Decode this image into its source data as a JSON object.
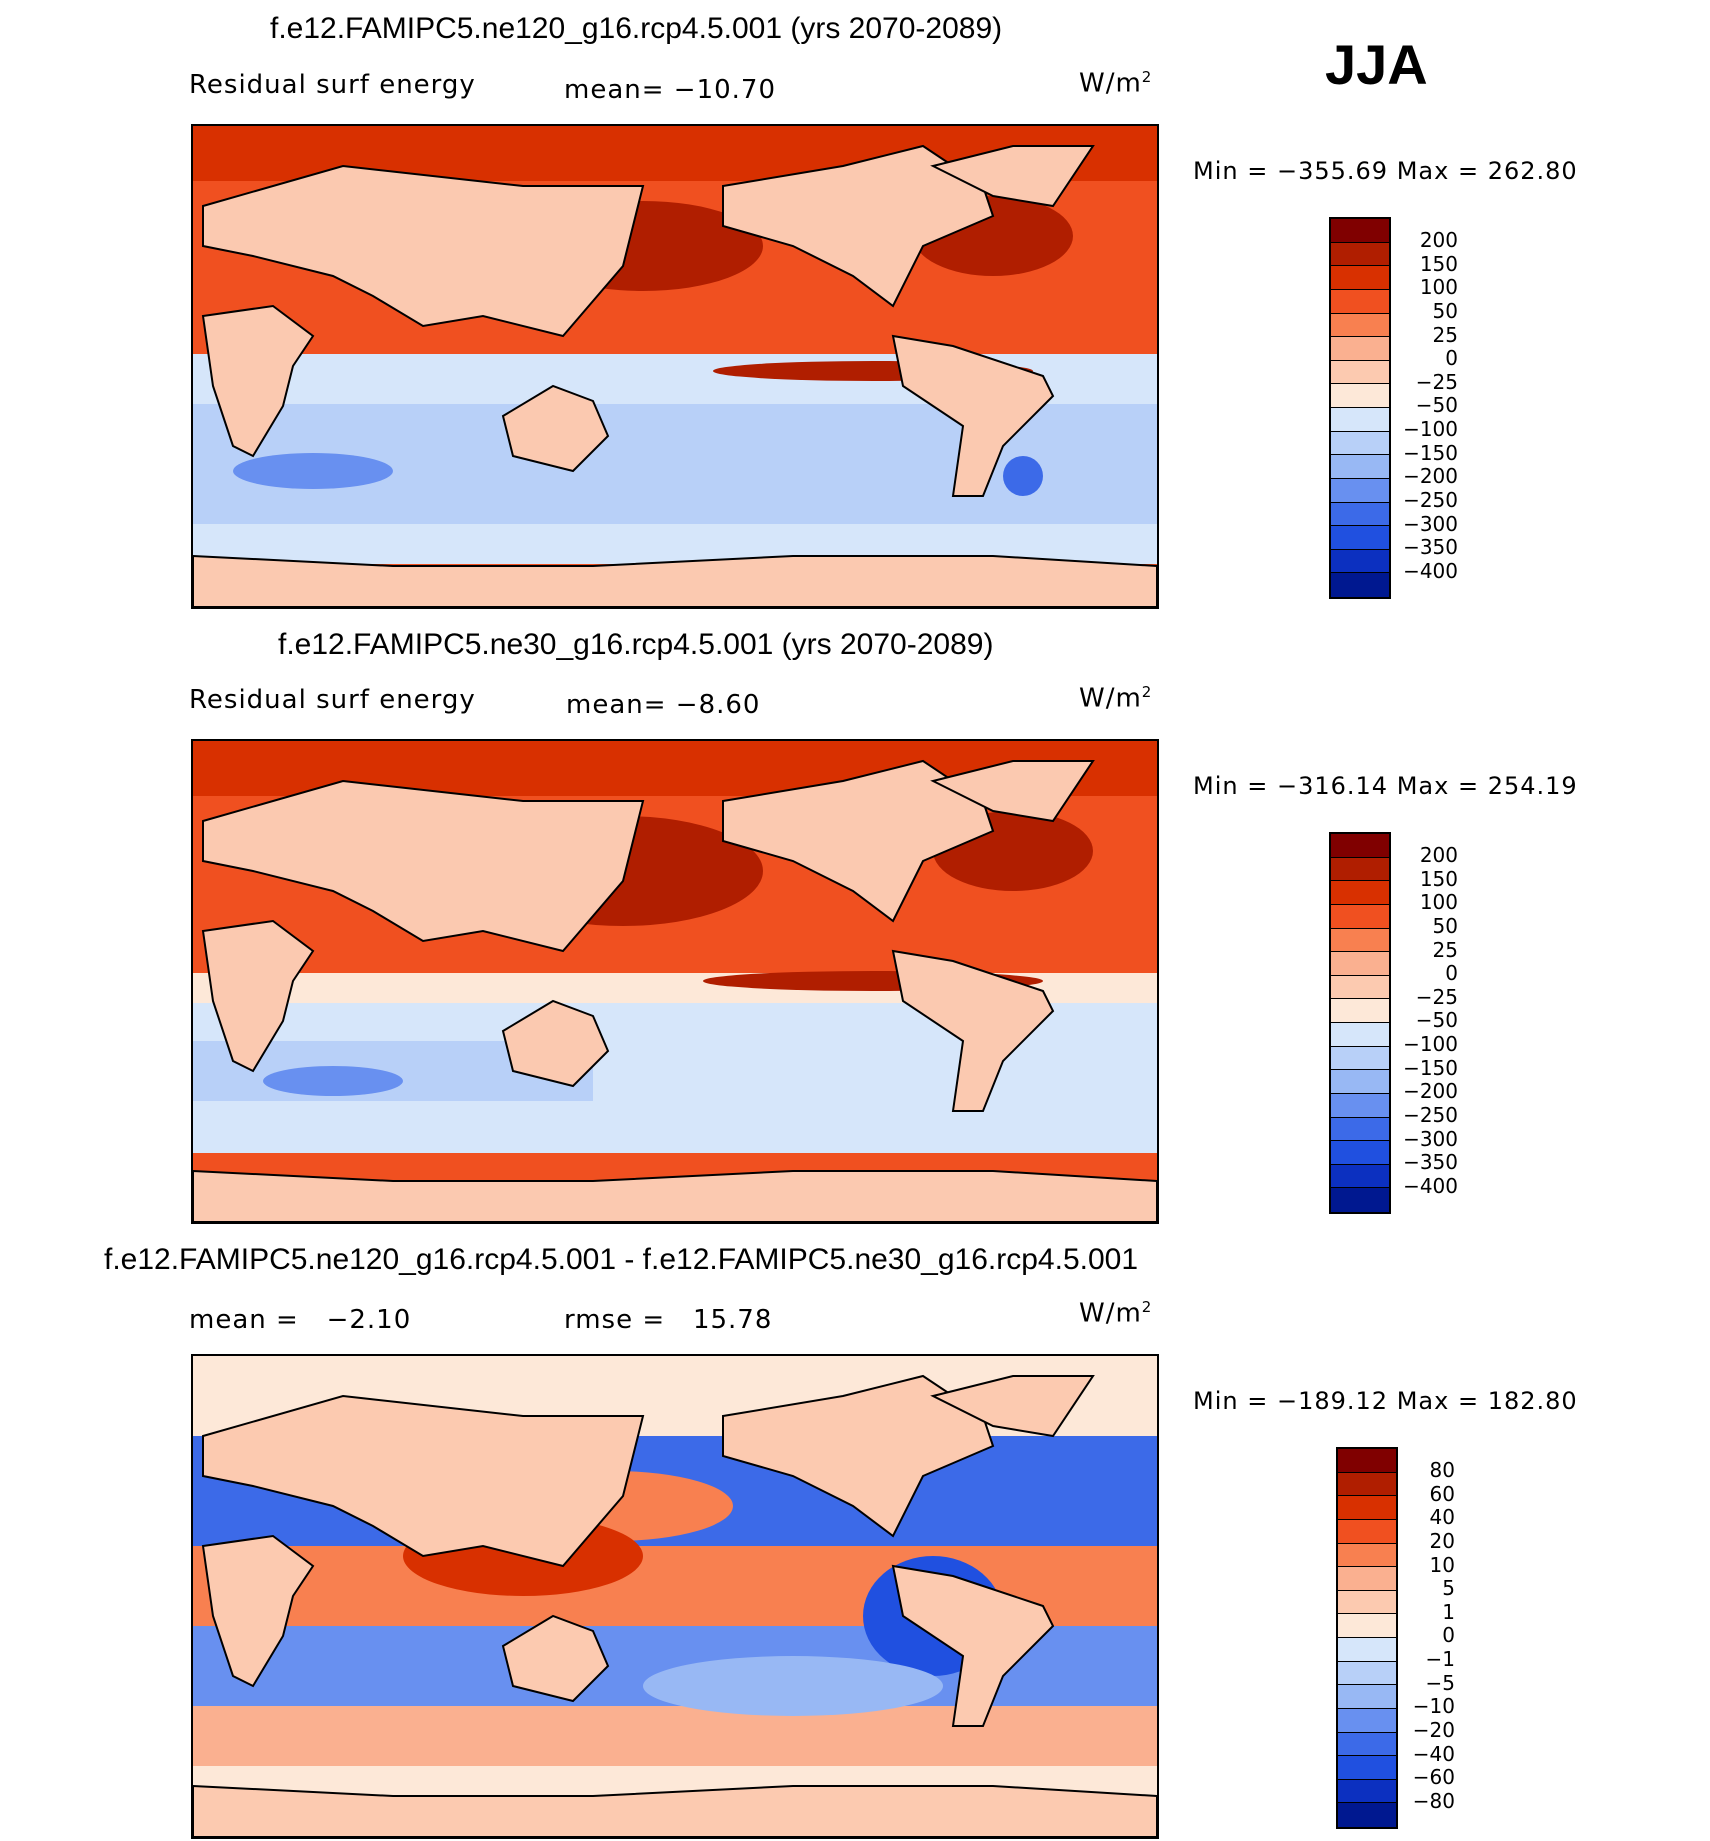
{
  "season": "JJA",
  "panels": [
    {
      "title": "f.e12.FAMIPC5.ne120_g16.rcp4.5.001 (yrs 2070-2089)",
      "left_label": "Residual surf energy",
      "stat_label": "mean=",
      "stat_value": "−10.70",
      "units": "W/m",
      "units_sup": "2",
      "min_label": "Min",
      "min_value": "−355.69",
      "max_label": "Max",
      "max_value": "262.80",
      "colorbar_labels": [
        "200",
        "150",
        "100",
        "50",
        "25",
        "0",
        "−25",
        "−50",
        "−100",
        "−150",
        "−200",
        "−250",
        "−300",
        "−350",
        "−400"
      ]
    },
    {
      "title": "f.e12.FAMIPC5.ne30_g16.rcp4.5.001 (yrs 2070-2089)",
      "left_label": "Residual surf energy",
      "stat_label": "mean=",
      "stat_value": "−8.60",
      "units": "W/m",
      "units_sup": "2",
      "min_label": "Min",
      "min_value": "−316.14",
      "max_label": "Max",
      "max_value": "254.19",
      "colorbar_labels": [
        "200",
        "150",
        "100",
        "50",
        "25",
        "0",
        "−25",
        "−50",
        "−100",
        "−150",
        "−200",
        "−250",
        "−300",
        "−350",
        "−400"
      ]
    },
    {
      "title": "f.e12.FAMIPC5.ne120_g16.rcp4.5.001 - f.e12.FAMIPC5.ne30_g16.rcp4.5.001",
      "left_label": "mean =",
      "left_value": "−2.10",
      "stat_label": "rmse =",
      "stat_value": "15.78",
      "units": "W/m",
      "units_sup": "2",
      "min_label": "Min",
      "min_value": "−189.12",
      "max_label": "Max",
      "max_value": "182.80",
      "colorbar_labels": [
        "80",
        "60",
        "40",
        "20",
        "10",
        "5",
        "1",
        "0",
        "−1",
        "−5",
        "−10",
        "−20",
        "−40",
        "−60",
        "−80"
      ]
    }
  ],
  "colors": {
    "abs_scale": [
      "#800000",
      "#b01e00",
      "#d83000",
      "#f05020",
      "#f88050",
      "#fab090",
      "#fccab0",
      "#fde8d8",
      "#d6e6fa",
      "#b8d0f8",
      "#98b8f4",
      "#6890f0",
      "#3c6ae8",
      "#2050e0",
      "#0c30c0",
      "#001890"
    ],
    "diff_scale": [
      "#800000",
      "#b01e00",
      "#d83000",
      "#f05020",
      "#f88050",
      "#fab090",
      "#fccab0",
      "#fde8d8",
      "#d6e6fa",
      "#b8d0f8",
      "#98b8f4",
      "#6890f0",
      "#3c6ae8",
      "#2050e0",
      "#0c30c0",
      "#001890"
    ],
    "land": "#fbc9b0"
  }
}
